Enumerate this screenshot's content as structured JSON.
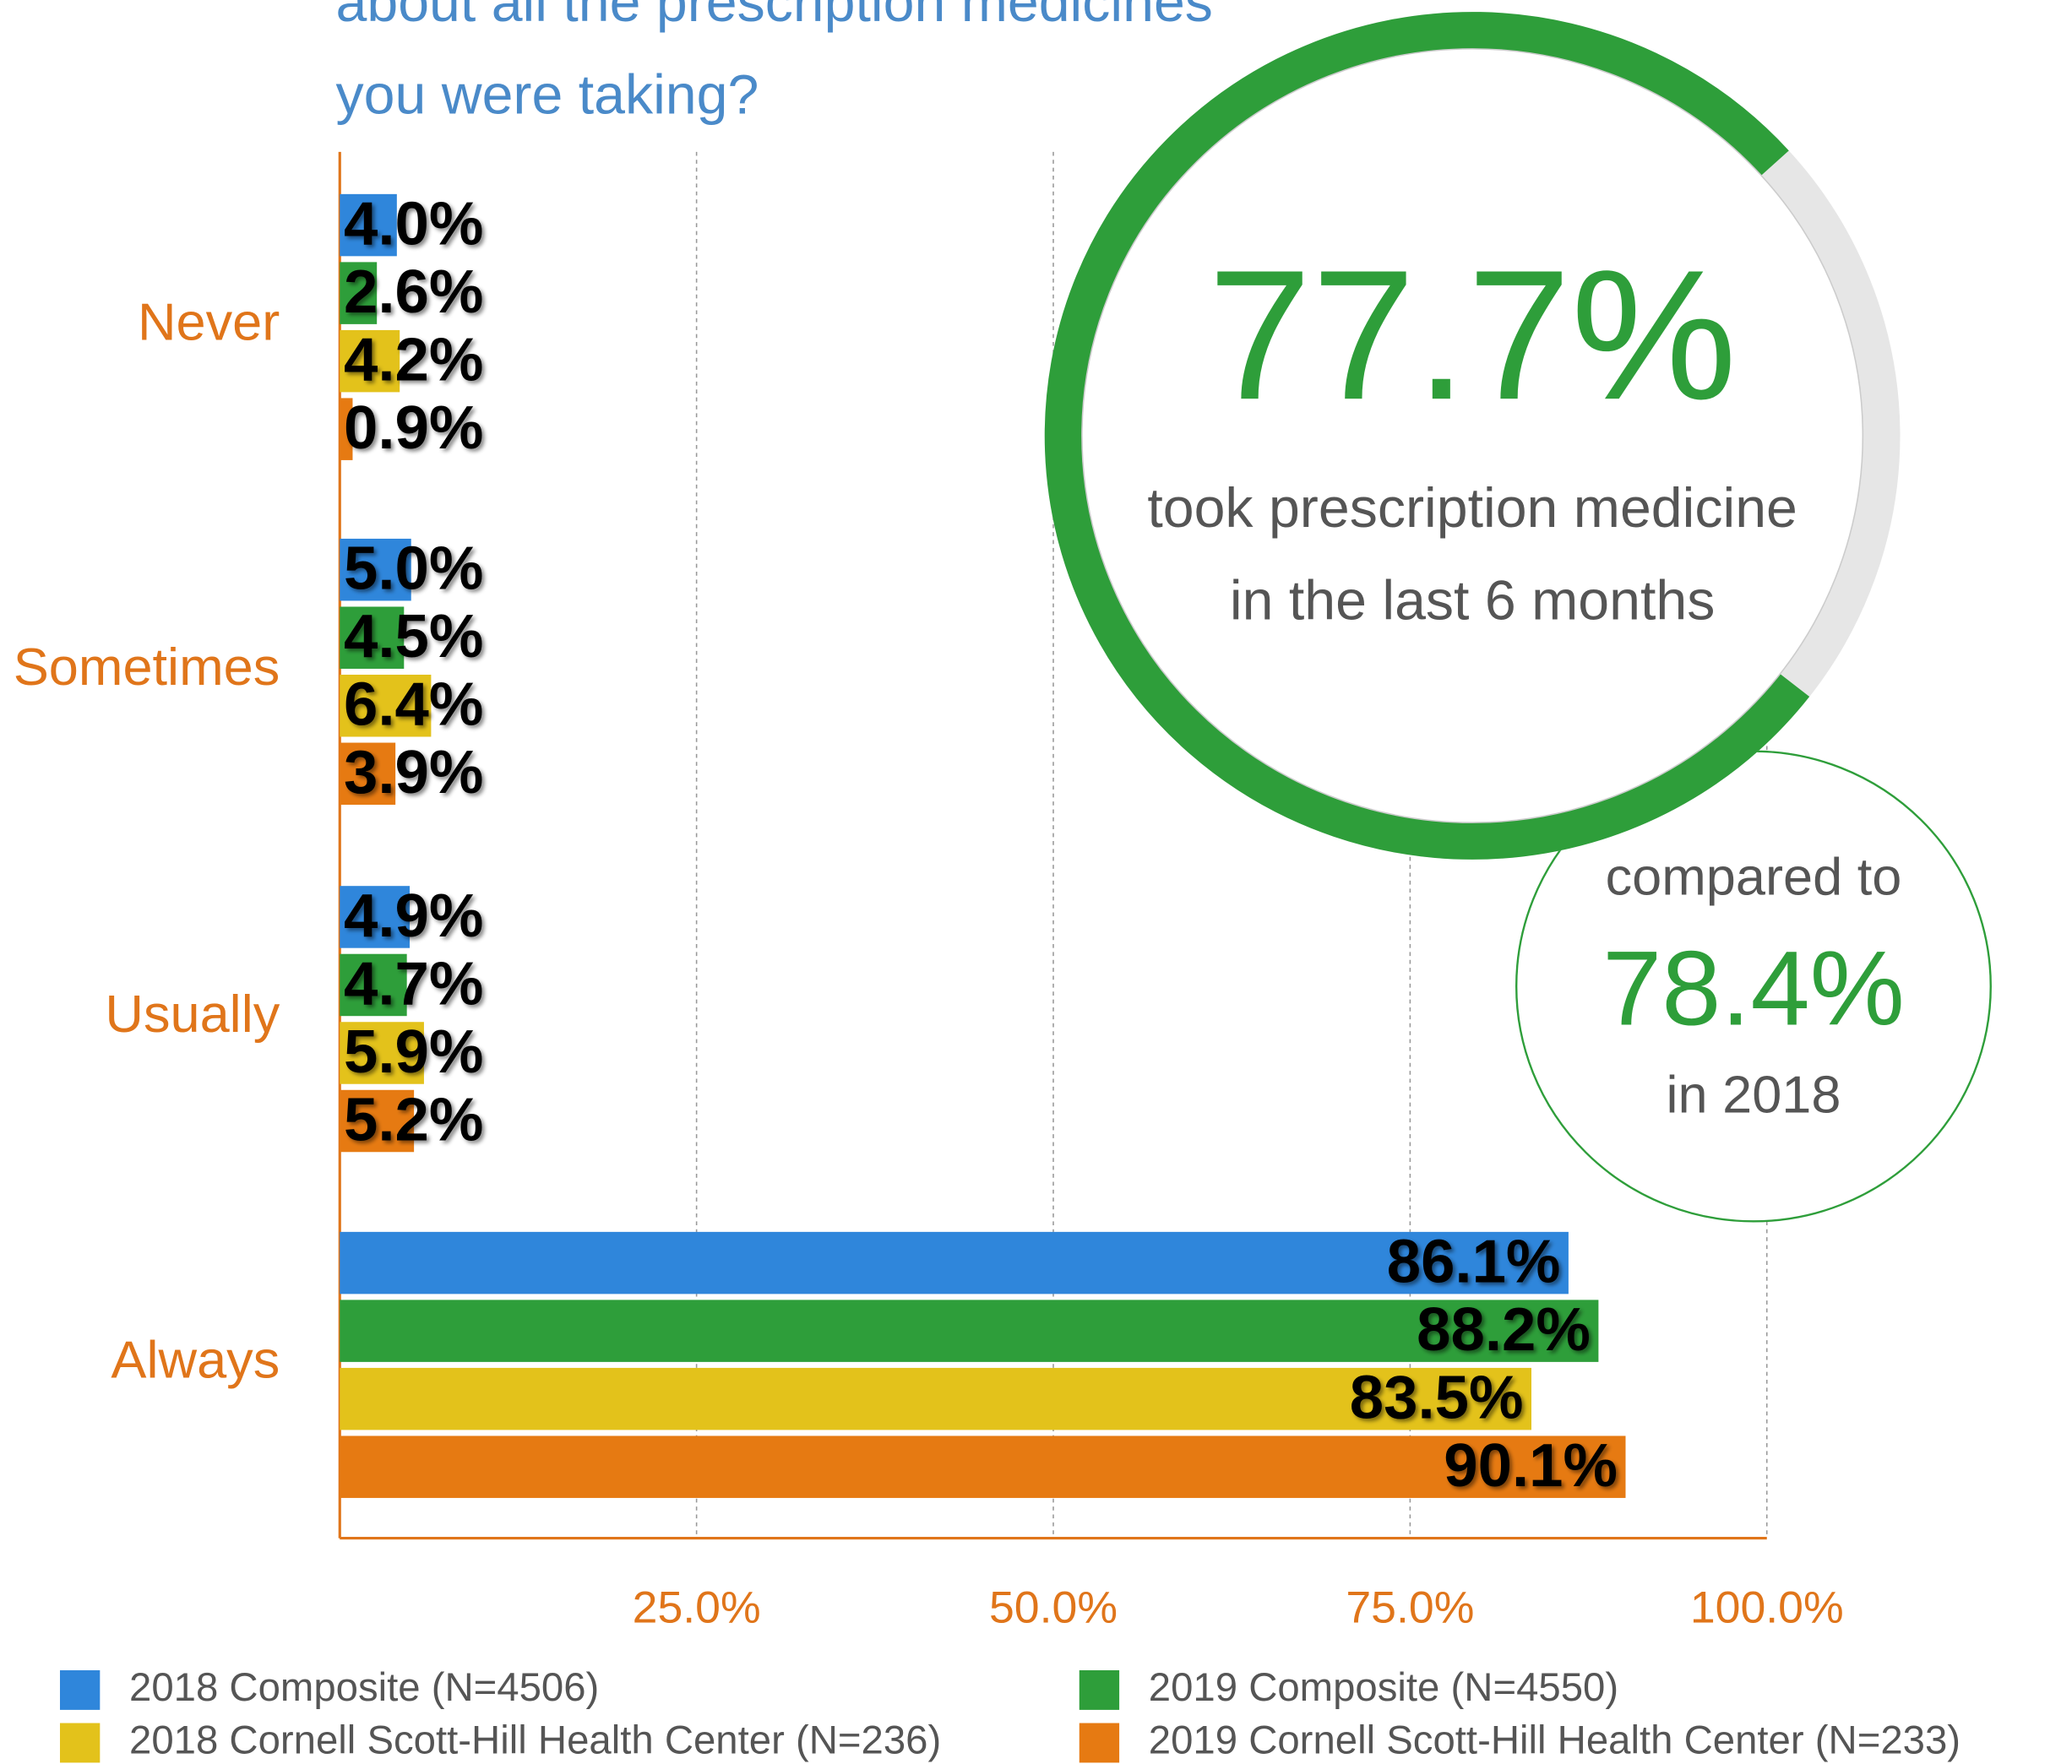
{
  "chart_data": {
    "type": "bar",
    "orientation": "horizontal",
    "title_lines": [
      "about all the prescription medicines",
      "you were taking?"
    ],
    "categories": [
      "Never",
      "Sometimes",
      "Usually",
      "Always"
    ],
    "series": [
      {
        "name": "2018 Composite (N=4506)",
        "color": "#2f86db",
        "values": [
          4.0,
          5.0,
          4.9,
          86.1
        ],
        "value_labels": [
          "4.0%",
          "5.0%",
          "4.9%",
          "86.1%"
        ]
      },
      {
        "name": "2019 Composite (N=4550)",
        "color": "#2e9e3a",
        "values": [
          2.6,
          4.5,
          4.7,
          88.2
        ],
        "value_labels": [
          "2.6%",
          "4.5%",
          "4.7%",
          "88.2%"
        ]
      },
      {
        "name": "2018 Cornell Scott-Hill Health Center (N=236)",
        "color": "#e3c21b",
        "values": [
          4.2,
          6.4,
          5.9,
          83.5
        ],
        "value_labels": [
          "4.2%",
          "6.4%",
          "5.9%",
          "83.5%"
        ]
      },
      {
        "name": "2019 Cornell Scott-Hill Health Center (N=233)",
        "color": "#e67a12",
        "values": [
          0.9,
          3.9,
          5.2,
          90.1
        ],
        "value_labels": [
          "0.9%",
          "3.9%",
          "5.2%",
          "90.1%"
        ]
      }
    ],
    "xlim": [
      0,
      100
    ],
    "xticks": [
      {
        "value": 25,
        "label": "25.0%"
      },
      {
        "value": 50,
        "label": "50.0%"
      },
      {
        "value": 75,
        "label": "75.0%"
      },
      {
        "value": 100,
        "label": "100.0%"
      }
    ],
    "grid": true,
    "legend": "bottom",
    "gauge": {
      "value": 77.7,
      "label": "77.7%",
      "color": "#2e9e3a",
      "text": [
        "took prescription medicine",
        "in the last 6 months"
      ]
    },
    "comparison": {
      "text_before": "compared to",
      "label": "78.4%",
      "text_after": "in 2018"
    }
  }
}
